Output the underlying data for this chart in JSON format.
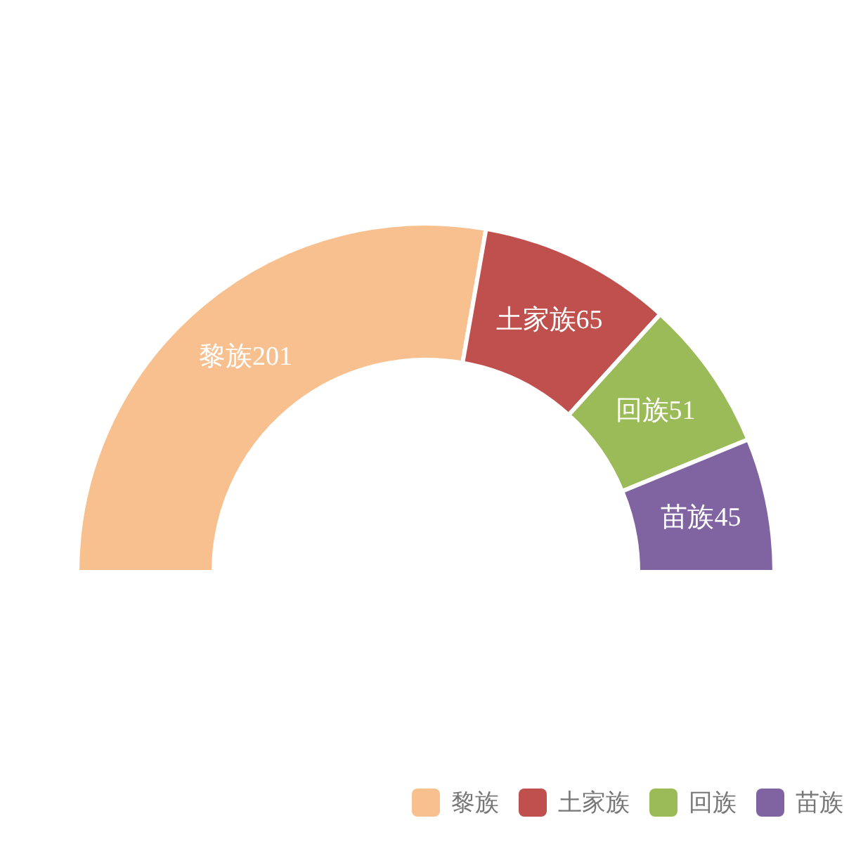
{
  "chart_data": {
    "type": "donut",
    "categories": [
      "黎族",
      "土家族",
      "回族",
      "苗族"
    ],
    "values": [
      201,
      65,
      51,
      45
    ],
    "colors": [
      "#f8c08f",
      "#c0504d",
      "#9bbb59",
      "#8064a2"
    ],
    "data_labels": true,
    "legend": "bottom right"
  }
}
